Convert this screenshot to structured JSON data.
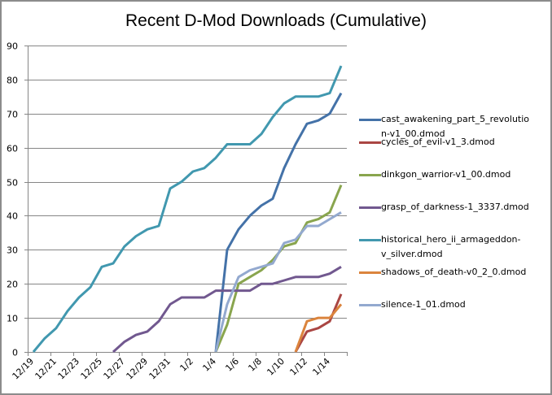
{
  "chart_data": {
    "type": "line",
    "title": "Recent D-Mod Downloads (Cumulative)",
    "xlabel": "",
    "ylabel": "",
    "ylim": [
      0,
      90
    ],
    "yticks": [
      "0",
      "10",
      "20",
      "30",
      "40",
      "50",
      "60",
      "70",
      "80",
      "90"
    ],
    "grid": true,
    "legend_position": "right",
    "x": [
      "12/19",
      "12/20",
      "12/21",
      "12/22",
      "12/23",
      "12/24",
      "12/25",
      "12/26",
      "12/27",
      "12/28",
      "12/29",
      "12/30",
      "12/31",
      "1/1",
      "1/2",
      "1/3",
      "1/4",
      "1/5",
      "1/6",
      "1/7",
      "1/8",
      "1/9",
      "1/10",
      "1/11",
      "1/12",
      "1/13",
      "1/14",
      "1/15"
    ],
    "xtick_labels": [
      "12/19",
      "12/21",
      "12/23",
      "12/25",
      "12/27",
      "12/29",
      "12/31",
      "1/2",
      "1/4",
      "1/6",
      "1/8",
      "1/10",
      "1/12",
      "1/14"
    ],
    "series": [
      {
        "name": "cast_awakening_part_5_revolution-v1_00.dmod",
        "label_lines": [
          "cast_awakening_part_5_revolutio",
          "n-v1_00.dmod"
        ],
        "color": "#4472a8",
        "values": [
          null,
          null,
          null,
          null,
          null,
          null,
          null,
          null,
          null,
          null,
          null,
          null,
          null,
          null,
          null,
          null,
          0,
          30,
          36,
          40,
          43,
          45,
          54,
          61,
          67,
          68,
          70,
          76
        ]
      },
      {
        "name": "cycles_of_evil-v1_3.dmod",
        "label_lines": [
          "cycles_of_evil-v1_3.dmod"
        ],
        "color": "#aa4643",
        "values": [
          null,
          null,
          null,
          null,
          null,
          null,
          null,
          null,
          null,
          null,
          null,
          null,
          null,
          null,
          null,
          null,
          null,
          null,
          null,
          null,
          null,
          null,
          null,
          0,
          6,
          7,
          9,
          17
        ]
      },
      {
        "name": "dinkgon_warrior-v1_00.dmod",
        "label_lines": [
          "dinkgon_warrior-v1_00.dmod"
        ],
        "color": "#89a54e",
        "values": [
          null,
          null,
          null,
          null,
          null,
          null,
          null,
          null,
          null,
          null,
          null,
          null,
          null,
          null,
          null,
          null,
          0,
          8,
          20,
          22,
          24,
          27,
          31,
          32,
          38,
          39,
          41,
          49
        ]
      },
      {
        "name": "grasp_of_darkness-1_3337.dmod",
        "label_lines": [
          "grasp_of_darkness-1_3337.dmod"
        ],
        "color": "#71588f",
        "values": [
          null,
          null,
          null,
          null,
          null,
          null,
          null,
          0,
          3,
          5,
          6,
          9,
          14,
          16,
          16,
          16,
          18,
          18,
          18,
          18,
          20,
          20,
          21,
          22,
          22,
          22,
          23,
          25
        ]
      },
      {
        "name": "historical_hero_ii_armageddon-v_silver.dmod",
        "label_lines": [
          "historical_hero_ii_armageddon-",
          "v_silver.dmod"
        ],
        "color": "#4198af",
        "values": [
          0,
          4,
          7,
          12,
          16,
          19,
          25,
          26,
          31,
          34,
          36,
          37,
          48,
          50,
          53,
          54,
          57,
          61,
          61,
          61,
          64,
          69,
          73,
          75,
          75,
          75,
          76,
          84
        ]
      },
      {
        "name": "shadows_of_death-v0_2_0.dmod",
        "label_lines": [
          "shadows_of_death-v0_2_0.dmod"
        ],
        "color": "#db843d",
        "values": [
          null,
          null,
          null,
          null,
          null,
          null,
          null,
          null,
          null,
          null,
          null,
          null,
          null,
          null,
          null,
          null,
          null,
          null,
          null,
          null,
          null,
          null,
          null,
          0,
          9,
          10,
          10,
          14
        ]
      },
      {
        "name": "silence-1_01.dmod",
        "label_lines": [
          "silence-1_01.dmod"
        ],
        "color": "#93a9cf",
        "values": [
          null,
          null,
          null,
          null,
          null,
          null,
          null,
          null,
          null,
          null,
          null,
          null,
          null,
          null,
          null,
          null,
          0,
          14,
          22,
          24,
          25,
          26,
          32,
          33,
          37,
          37,
          39,
          41
        ]
      }
    ]
  }
}
